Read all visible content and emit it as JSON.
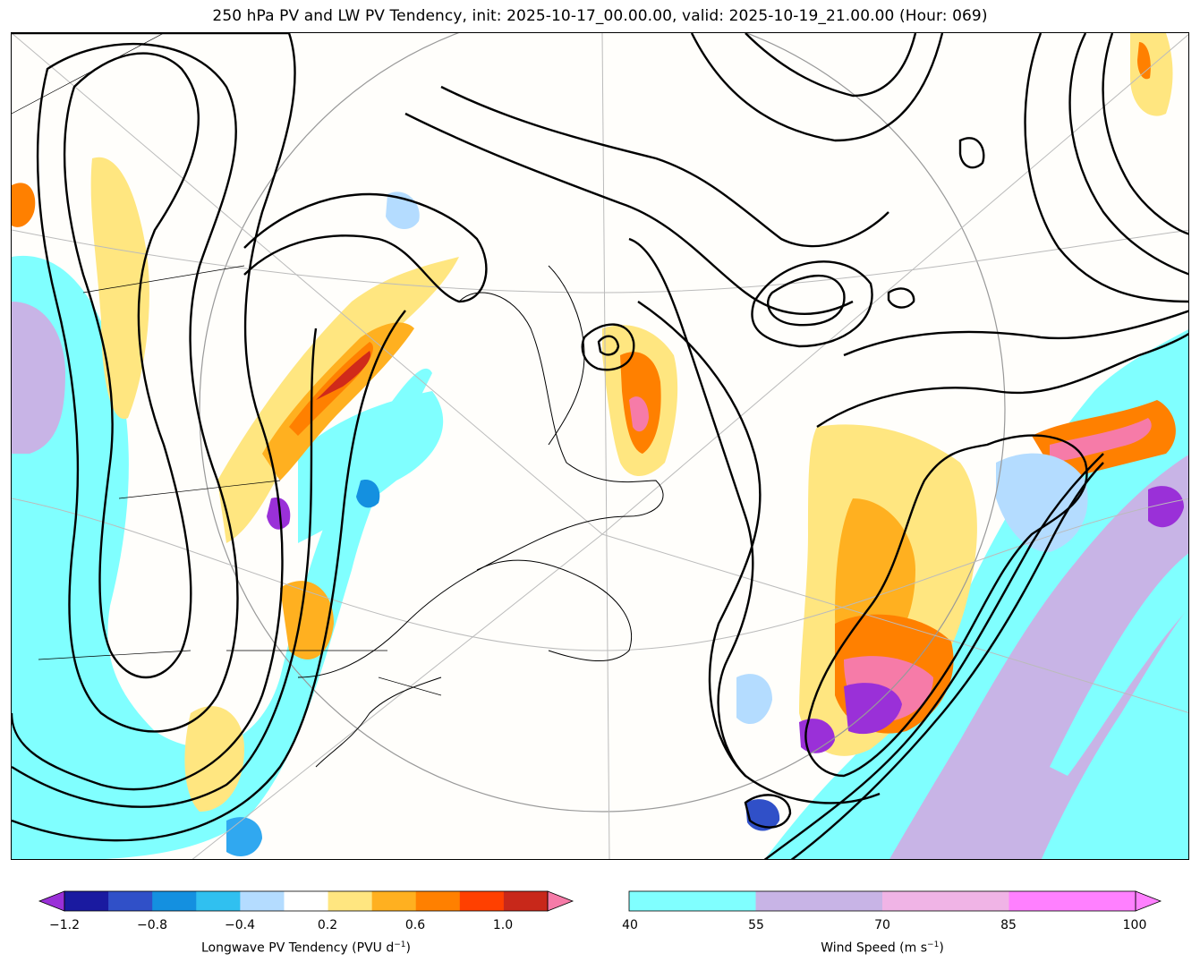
{
  "title": "250 hPa PV and LW PV Tendency, init: 2025-10-17_00.00.00, valid: 2025-10-19_21.00.00 (Hour: 069)",
  "map": {
    "projection_outline": "polar stereographic",
    "fill_colors": {
      "wind_40_55": "#80ffff",
      "wind_55_70": "#c8b4e6",
      "tend_pos_low": "#ffe680",
      "tend_pos_mid": "#ffb020",
      "tend_pos_high": "#ff8000",
      "tend_pos_max": "#d02a1a",
      "tend_pos_extreme": "#f67ba8",
      "tend_neg_low": "#b4dcff",
      "tend_neg_mid": "#30a8f0",
      "tend_neg_strong": "#3050c8",
      "tend_neg_extreme": "#9a30d8",
      "contour": "#000000",
      "graticule": "#999999"
    }
  },
  "pv_tendency_colorbar": {
    "label_main": "Longwave PV Tendency (PVU d",
    "label_exp": "−1",
    "label_end": ")",
    "ticks": [
      "−1.2",
      "−0.8",
      "−0.4",
      "0.2",
      "0.6",
      "1.0"
    ],
    "colors": [
      "#9a30d8",
      "#1a1aa0",
      "#3050c8",
      "#1490e0",
      "#30c0f0",
      "#b4dcff",
      "#ffffff",
      "#ffe680",
      "#ffb020",
      "#ff8000",
      "#ff4000",
      "#c8281a",
      "#f67ba8"
    ]
  },
  "wind_colorbar": {
    "label_main": "Wind Speed (m s",
    "label_exp": "−1",
    "label_end": ")",
    "ticks": [
      "40",
      "55",
      "70",
      "85",
      "100"
    ],
    "colors": [
      "#80ffff",
      "#c8b4e6",
      "#f0b4e6",
      "#ff80ff"
    ]
  }
}
